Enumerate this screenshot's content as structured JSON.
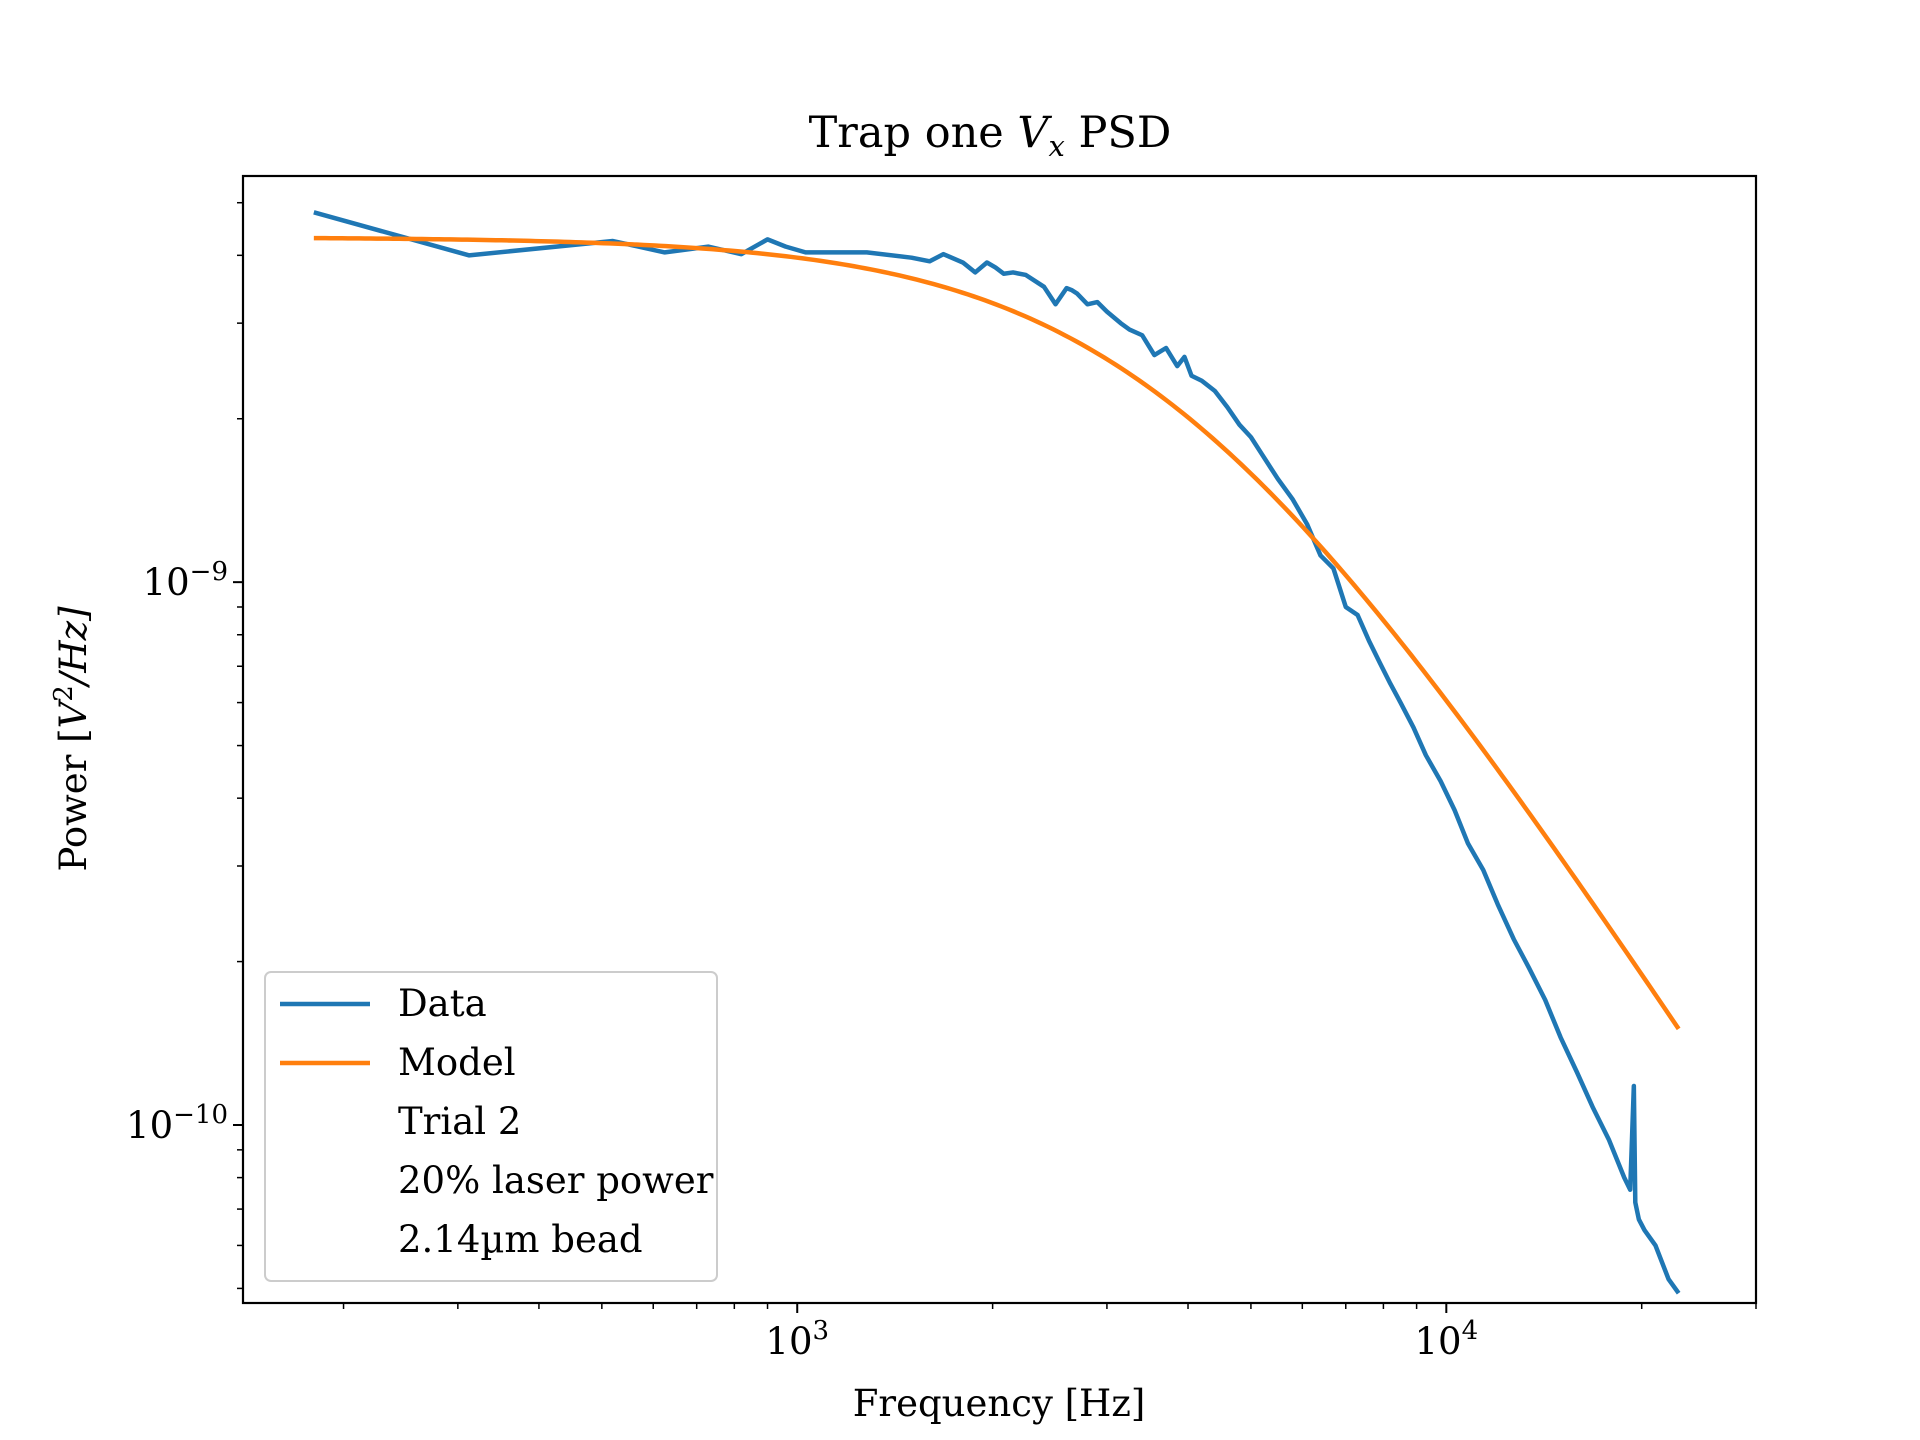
{
  "chart_data": {
    "type": "line",
    "title": "Trap one Vₓ PSD",
    "title_parts": {
      "prefix": "Trap one ",
      "var": "V",
      "sub": "x",
      "suffix": " PSD"
    },
    "xlabel": "Frequency [Hz]",
    "ylabel": "Power [V²/Hz]",
    "ylabel_parts": {
      "prefix": "Power [",
      "var": "V",
      "sup": "2",
      "suffix": "/Hz]"
    },
    "x_scale": "log",
    "y_scale": "log",
    "xlim": [
      140,
      30000
    ],
    "ylim": [
      4.7e-11,
      5.6e-09
    ],
    "x_ticks": [
      {
        "value": 1000,
        "base": "10",
        "exp": "3"
      },
      {
        "value": 10000,
        "base": "10",
        "exp": "4"
      }
    ],
    "y_ticks": [
      {
        "value": 1e-09,
        "base": "10",
        "exp": "−9"
      },
      {
        "value": 1e-10,
        "base": "10",
        "exp": "−10"
      }
    ],
    "grid": false,
    "legend_position": "lower-left",
    "series": [
      {
        "name": "Data",
        "color": "#1f77b4",
        "x": [
          180,
          312,
          520,
          625,
          730,
          820,
          900,
          960,
          1030,
          1280,
          1500,
          1600,
          1680,
          1800,
          1880,
          1960,
          2020,
          2080,
          2150,
          2250,
          2400,
          2500,
          2600,
          2650,
          2700,
          2800,
          2900,
          3000,
          3150,
          3250,
          3400,
          3550,
          3700,
          3850,
          3950,
          4050,
          4200,
          4400,
          4600,
          4800,
          5000,
          5200,
          5500,
          5800,
          6100,
          6400,
          6700,
          7000,
          7300,
          7600,
          7900,
          8200,
          8500,
          8900,
          9300,
          9800,
          10300,
          10800,
          11400,
          12000,
          12700,
          13400,
          14200,
          15000,
          15900,
          16800,
          17800,
          18800,
          19200,
          19450,
          19550,
          19800,
          20200,
          21000,
          22000,
          22800
        ],
        "y": [
          4.8e-09,
          4e-09,
          4.25e-09,
          4.05e-09,
          4.15e-09,
          4.02e-09,
          4.28e-09,
          4.15e-09,
          4.05e-09,
          4.05e-09,
          3.96e-09,
          3.9e-09,
          4.02e-09,
          3.88e-09,
          3.72e-09,
          3.88e-09,
          3.8e-09,
          3.7e-09,
          3.72e-09,
          3.68e-09,
          3.5e-09,
          3.25e-09,
          3.48e-09,
          3.45e-09,
          3.4e-09,
          3.25e-09,
          3.28e-09,
          3.15e-09,
          3e-09,
          2.92e-09,
          2.85e-09,
          2.62e-09,
          2.7e-09,
          2.5e-09,
          2.6e-09,
          2.4e-09,
          2.35e-09,
          2.25e-09,
          2.1e-09,
          1.95e-09,
          1.85e-09,
          1.72e-09,
          1.55e-09,
          1.42e-09,
          1.28e-09,
          1.12e-09,
          1.06e-09,
          9e-10,
          8.7e-10,
          7.8e-10,
          7.1e-10,
          6.5e-10,
          6e-10,
          5.4e-10,
          4.8e-10,
          4.3e-10,
          3.8e-10,
          3.3e-10,
          2.95e-10,
          2.55e-10,
          2.2e-10,
          1.95e-10,
          1.7e-10,
          1.45e-10,
          1.25e-10,
          1.08e-10,
          9.4e-11,
          8e-11,
          7.6e-11,
          1.18e-10,
          7.2e-11,
          6.7e-11,
          6.4e-11,
          6e-11,
          5.2e-11,
          4.9e-11
        ]
      },
      {
        "name": "Model",
        "color": "#ff7f0e",
        "model": {
          "p0": 4.32e-09,
          "fc": 3710,
          "exponent": 1.83
        },
        "x_range": [
          180,
          22800
        ]
      }
    ],
    "legend": {
      "entries": [
        {
          "label": "Data",
          "color": "#1f77b4"
        },
        {
          "label": "Model",
          "color": "#ff7f0e"
        }
      ],
      "extra_lines": [
        "Trial 2",
        "20% laser power",
        "2.14µm bead"
      ]
    }
  }
}
